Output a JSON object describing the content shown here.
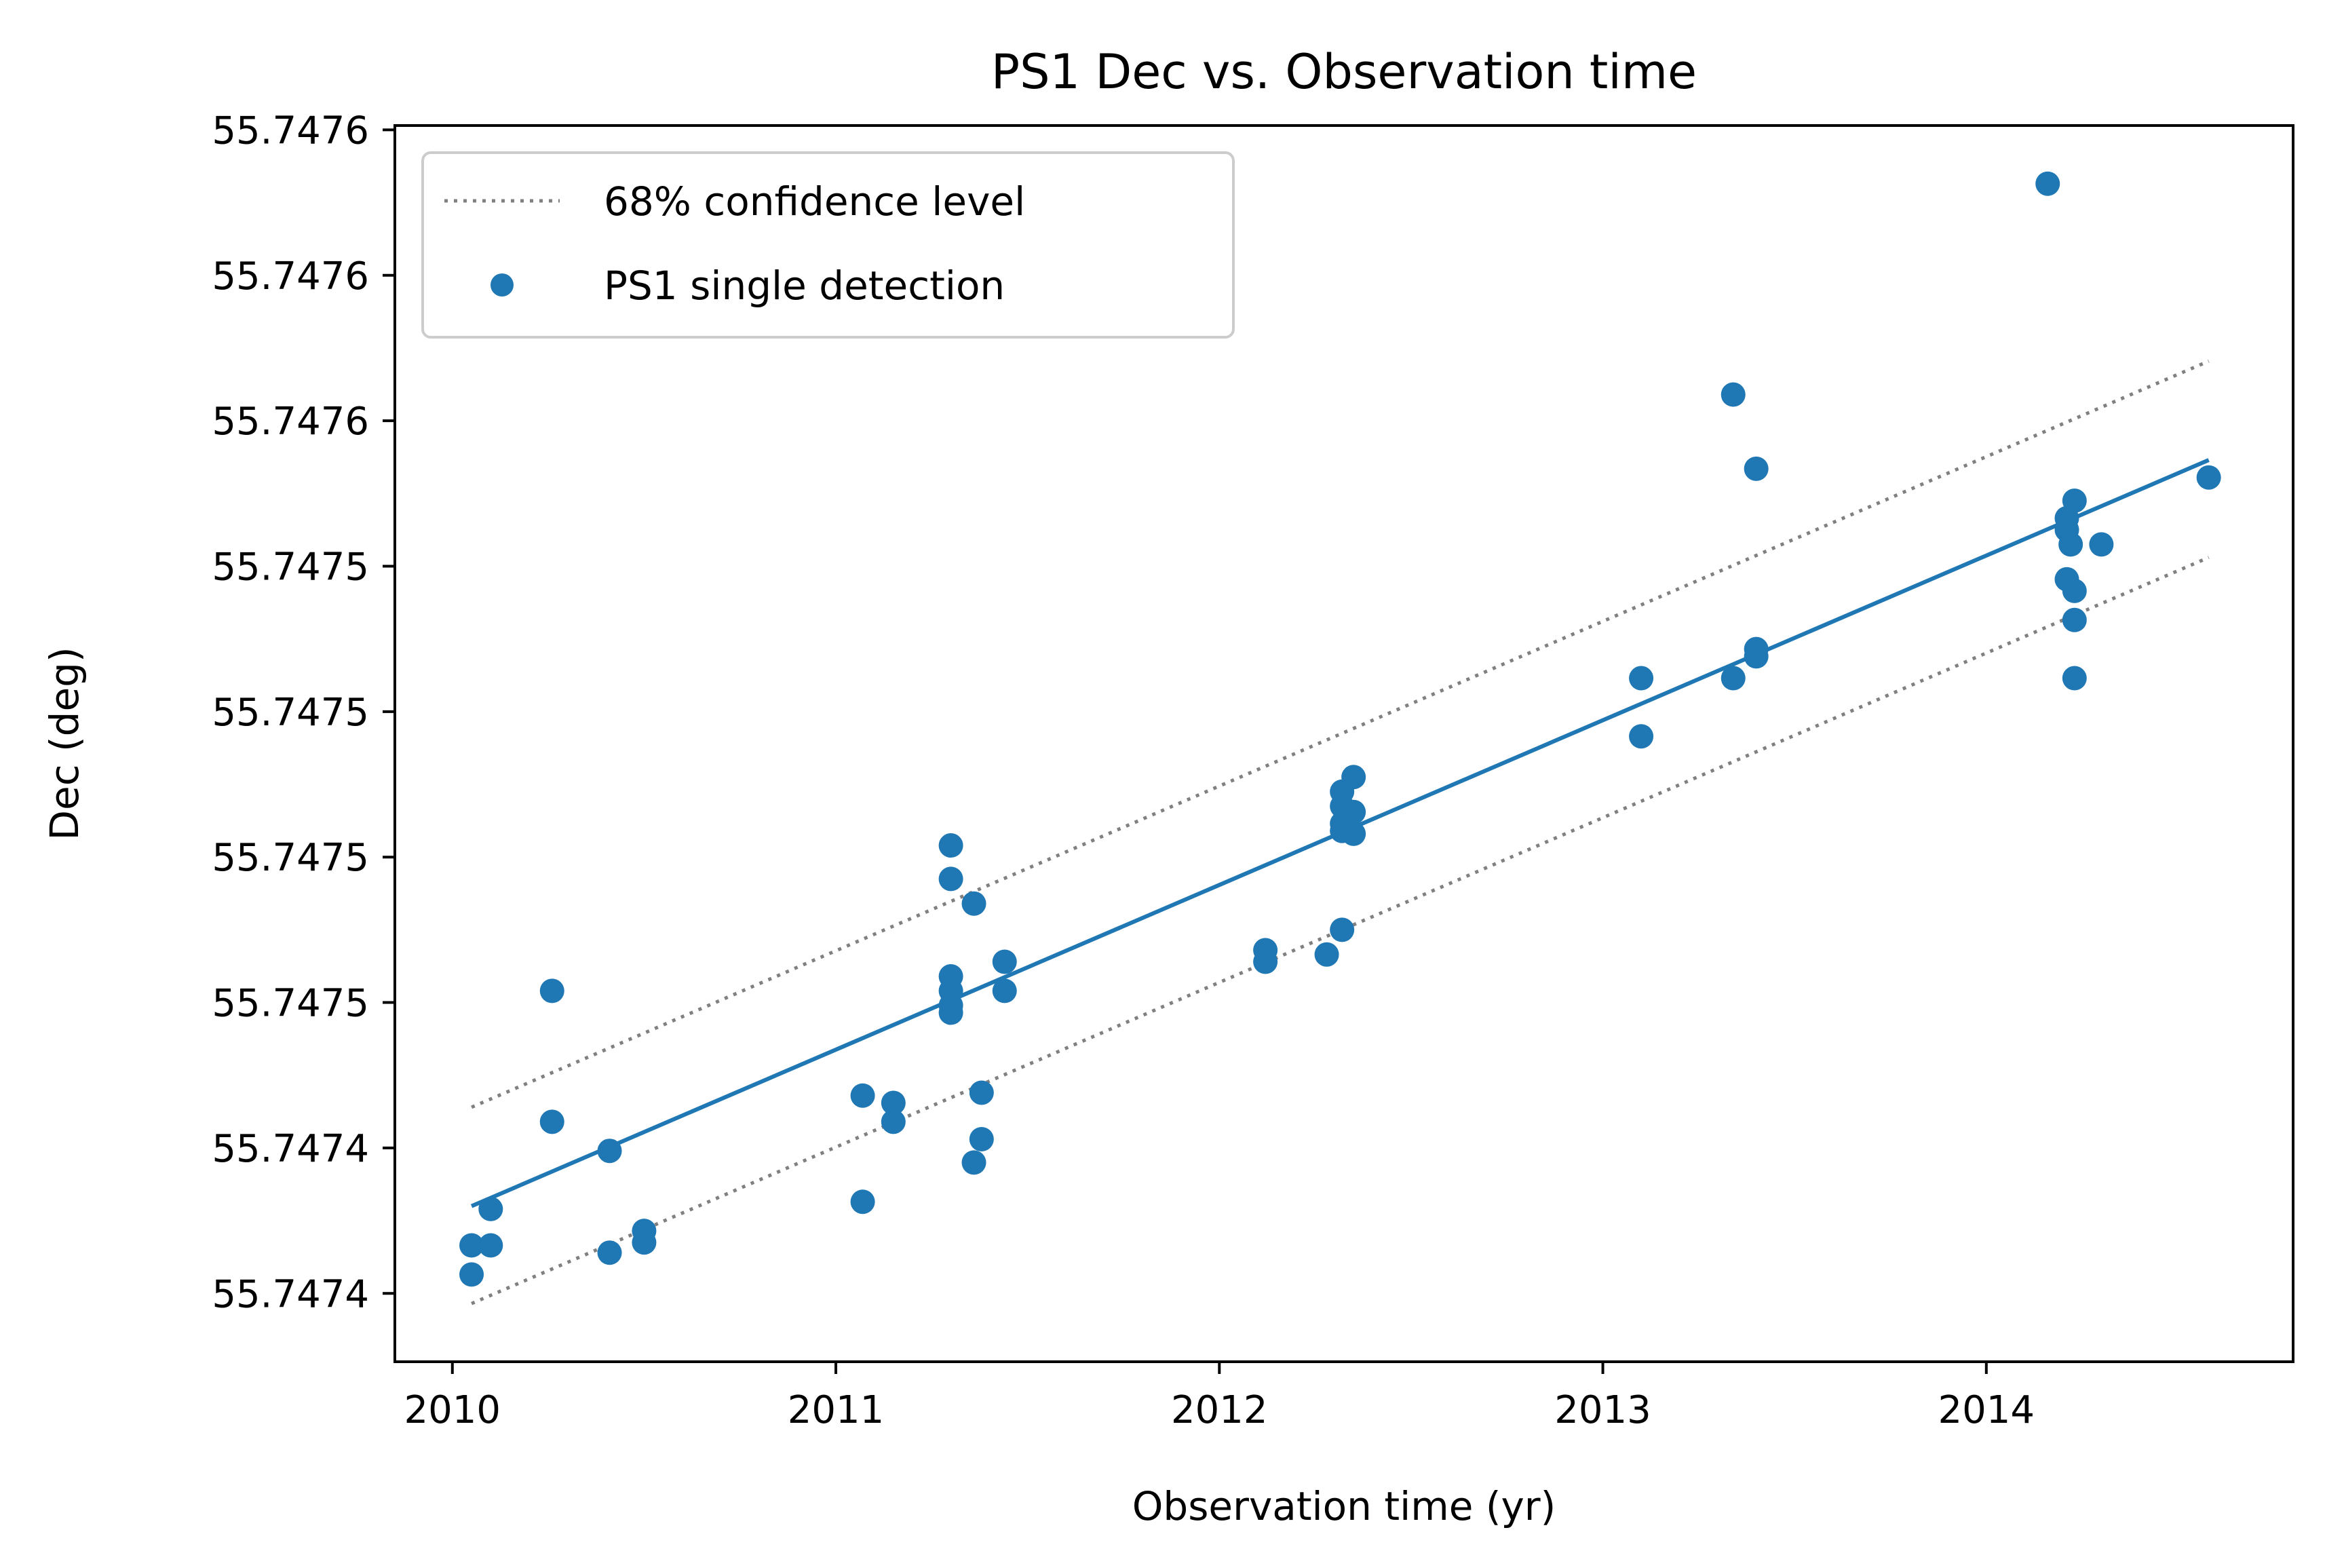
{
  "chart_data": {
    "type": "scatter",
    "title": "PS1 Dec vs. Observation time",
    "xlabel": "Observation time (yr)",
    "ylabel": "Dec (deg)",
    "xlim": [
      2009.85,
      2014.8
    ],
    "ylim": [
      0,
      8.5
    ],
    "x_ticks": [
      {
        "value": 2010,
        "label": "2010"
      },
      {
        "value": 2011,
        "label": "2011"
      },
      {
        "value": 2012,
        "label": "2012"
      },
      {
        "value": 2013,
        "label": "2013"
      },
      {
        "value": 2014,
        "label": "2014"
      }
    ],
    "y_ticks": [
      {
        "value": 0.47,
        "label": "55.7474"
      },
      {
        "value": 1.47,
        "label": "55.7474"
      },
      {
        "value": 2.47,
        "label": "55.7475"
      },
      {
        "value": 3.47,
        "label": "55.7475"
      },
      {
        "value": 4.47,
        "label": "55.7475"
      },
      {
        "value": 5.47,
        "label": "55.7475"
      },
      {
        "value": 6.47,
        "label": "55.7476"
      },
      {
        "value": 7.47,
        "label": "55.7476"
      },
      {
        "value": 8.47,
        "label": "55.7476"
      }
    ],
    "grid": false,
    "legend": {
      "position": "top-left",
      "entries": [
        {
          "label": "68% confidence level",
          "style": "dotted-line",
          "color": "#808080"
        },
        {
          "label": "PS1 single detection",
          "style": "marker",
          "color": "#1f77b4"
        }
      ]
    },
    "series": [
      {
        "name": "PS1 single detection",
        "kind": "scatter",
        "color": "#1f77b4",
        "points": [
          [
            2010.05,
            0.8
          ],
          [
            2010.05,
            0.6
          ],
          [
            2010.1,
            0.8
          ],
          [
            2010.1,
            1.05
          ],
          [
            2010.26,
            2.55
          ],
          [
            2010.26,
            1.65
          ],
          [
            2010.41,
            1.45
          ],
          [
            2010.41,
            0.75
          ],
          [
            2010.5,
            0.9
          ],
          [
            2010.5,
            0.82
          ],
          [
            2011.07,
            1.83
          ],
          [
            2011.07,
            1.1
          ],
          [
            2011.15,
            1.78
          ],
          [
            2011.15,
            1.65
          ],
          [
            2011.3,
            3.55
          ],
          [
            2011.3,
            3.32
          ],
          [
            2011.3,
            2.65
          ],
          [
            2011.3,
            2.55
          ],
          [
            2011.3,
            2.45
          ],
          [
            2011.3,
            2.4
          ],
          [
            2011.36,
            3.15
          ],
          [
            2011.36,
            1.37
          ],
          [
            2011.38,
            1.85
          ],
          [
            2011.38,
            1.53
          ],
          [
            2011.44,
            2.75
          ],
          [
            2011.44,
            2.55
          ],
          [
            2012.12,
            2.83
          ],
          [
            2012.12,
            2.75
          ],
          [
            2012.28,
            2.8
          ],
          [
            2012.32,
            2.97
          ],
          [
            2012.32,
            3.92
          ],
          [
            2012.32,
            3.82
          ],
          [
            2012.32,
            3.7
          ],
          [
            2012.32,
            3.65
          ],
          [
            2012.35,
            4.02
          ],
          [
            2012.35,
            3.78
          ],
          [
            2012.35,
            3.63
          ],
          [
            2013.1,
            4.7
          ],
          [
            2013.1,
            4.3
          ],
          [
            2013.34,
            6.65
          ],
          [
            2013.34,
            4.7
          ],
          [
            2013.4,
            6.14
          ],
          [
            2013.4,
            4.9
          ],
          [
            2013.4,
            4.85
          ],
          [
            2014.16,
            8.1
          ],
          [
            2014.21,
            5.8
          ],
          [
            2014.21,
            5.72
          ],
          [
            2014.21,
            5.38
          ],
          [
            2014.22,
            5.62
          ],
          [
            2014.23,
            5.92
          ],
          [
            2014.23,
            5.3
          ],
          [
            2014.23,
            5.1
          ],
          [
            2014.23,
            4.7
          ],
          [
            2014.3,
            5.62
          ],
          [
            2014.58,
            6.08
          ]
        ]
      },
      {
        "name": "",
        "kind": "line",
        "color": "#1f77b4",
        "points": [
          [
            2010.05,
            1.07
          ],
          [
            2014.58,
            6.2
          ]
        ]
      },
      {
        "name": "68% confidence level",
        "kind": "dotted-line",
        "color": "#808080",
        "points": [
          [
            2010.05,
            1.75
          ],
          [
            2014.58,
            6.88
          ]
        ]
      },
      {
        "name": "68% confidence level",
        "kind": "dotted-line",
        "color": "#808080",
        "points": [
          [
            2010.05,
            0.4
          ],
          [
            2014.58,
            5.53
          ]
        ]
      }
    ]
  }
}
